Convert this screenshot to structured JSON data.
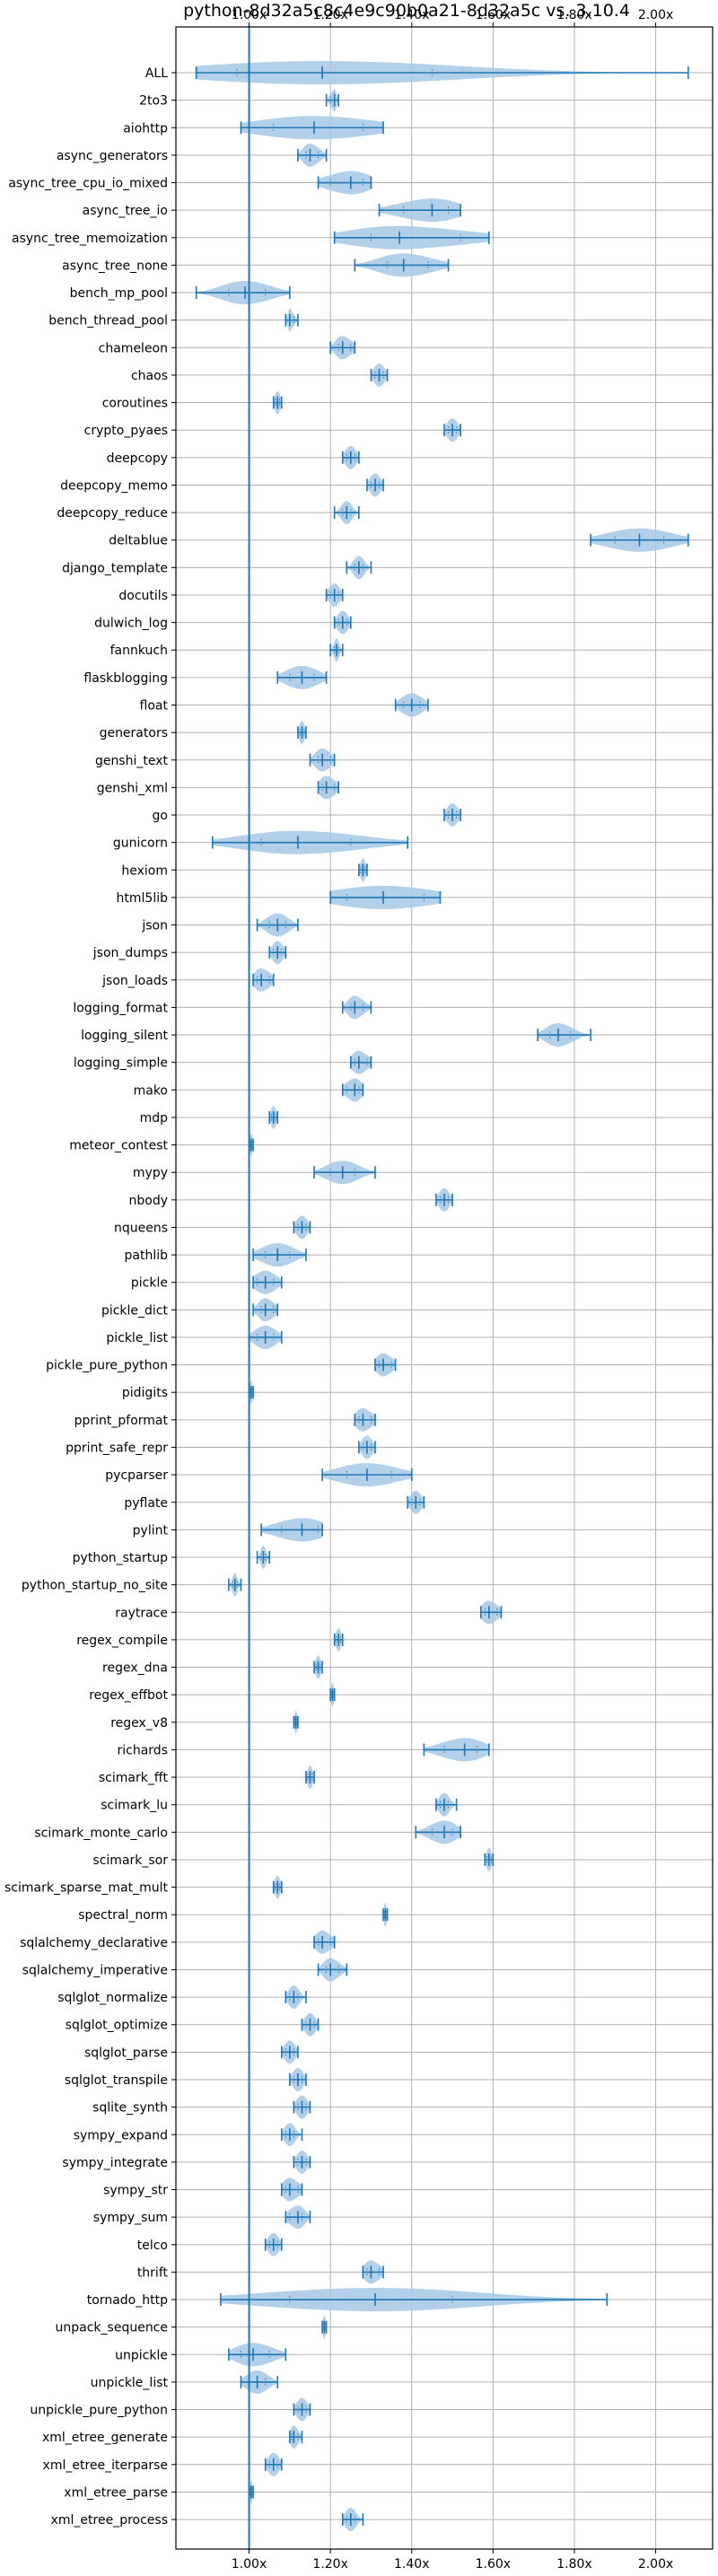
{
  "chart_data": {
    "type": "violin",
    "orientation": "horizontal",
    "title": "python-8d32a5c8c4e9c90b0a21-8d32a5c vs. 3.10.4",
    "xlabel": "",
    "ylabel": "",
    "xlim": [
      0.82,
      2.14
    ],
    "xticks": [
      1.0,
      1.2,
      1.4,
      1.6,
      1.8,
      2.0
    ],
    "xtick_labels": [
      "1.00x",
      "1.20x",
      "1.40x",
      "1.60x",
      "1.80x",
      "2.00x"
    ],
    "xticks_top_and_bottom": true,
    "reference_line": 1.0,
    "grid": true,
    "color": "#1f77b4",
    "fill_color": "#a6c8e6",
    "categories": [
      {
        "name": "ALL",
        "min": 0.87,
        "q1": 0.97,
        "median": 1.18,
        "q3": 1.45,
        "max": 2.08
      },
      {
        "name": "2to3",
        "min": 1.19,
        "q1": 1.2,
        "median": 1.21,
        "q3": 1.21,
        "max": 1.22
      },
      {
        "name": "aiohttp",
        "min": 0.98,
        "q1": 1.06,
        "median": 1.16,
        "q3": 1.28,
        "max": 1.33
      },
      {
        "name": "async_generators",
        "min": 1.12,
        "q1": 1.14,
        "median": 1.15,
        "q3": 1.17,
        "max": 1.19
      },
      {
        "name": "async_tree_cpu_io_mixed",
        "min": 1.17,
        "q1": 1.2,
        "median": 1.25,
        "q3": 1.28,
        "max": 1.3
      },
      {
        "name": "async_tree_io",
        "min": 1.32,
        "q1": 1.38,
        "median": 1.45,
        "q3": 1.49,
        "max": 1.52
      },
      {
        "name": "async_tree_memoization",
        "min": 1.21,
        "q1": 1.3,
        "median": 1.37,
        "q3": 1.52,
        "max": 1.59
      },
      {
        "name": "async_tree_none",
        "min": 1.26,
        "q1": 1.34,
        "median": 1.38,
        "q3": 1.44,
        "max": 1.49
      },
      {
        "name": "bench_mp_pool",
        "min": 0.87,
        "q1": 0.95,
        "median": 0.99,
        "q3": 1.04,
        "max": 1.1
      },
      {
        "name": "bench_thread_pool",
        "min": 1.09,
        "q1": 1.1,
        "median": 1.1,
        "q3": 1.11,
        "max": 1.12
      },
      {
        "name": "chameleon",
        "min": 1.2,
        "q1": 1.22,
        "median": 1.23,
        "q3": 1.25,
        "max": 1.26
      },
      {
        "name": "chaos",
        "min": 1.3,
        "q1": 1.31,
        "median": 1.32,
        "q3": 1.33,
        "max": 1.34
      },
      {
        "name": "coroutines",
        "min": 1.06,
        "q1": 1.065,
        "median": 1.07,
        "q3": 1.075,
        "max": 1.08
      },
      {
        "name": "crypto_pyaes",
        "min": 1.48,
        "q1": 1.49,
        "median": 1.5,
        "q3": 1.51,
        "max": 1.52
      },
      {
        "name": "deepcopy",
        "min": 1.23,
        "q1": 1.24,
        "median": 1.25,
        "q3": 1.26,
        "max": 1.27
      },
      {
        "name": "deepcopy_memo",
        "min": 1.29,
        "q1": 1.3,
        "median": 1.31,
        "q3": 1.32,
        "max": 1.33
      },
      {
        "name": "deepcopy_reduce",
        "min": 1.21,
        "q1": 1.23,
        "median": 1.24,
        "q3": 1.25,
        "max": 1.27
      },
      {
        "name": "deltablue",
        "min": 1.84,
        "q1": 1.9,
        "median": 1.96,
        "q3": 2.02,
        "max": 2.08
      },
      {
        "name": "django_template",
        "min": 1.24,
        "q1": 1.26,
        "median": 1.27,
        "q3": 1.28,
        "max": 1.3
      },
      {
        "name": "docutils",
        "min": 1.19,
        "q1": 1.2,
        "median": 1.21,
        "q3": 1.22,
        "max": 1.23
      },
      {
        "name": "dulwich_log",
        "min": 1.21,
        "q1": 1.22,
        "median": 1.23,
        "q3": 1.24,
        "max": 1.25
      },
      {
        "name": "fannkuch",
        "min": 1.2,
        "q1": 1.21,
        "median": 1.215,
        "q3": 1.22,
        "max": 1.23
      },
      {
        "name": "flaskblogging",
        "min": 1.07,
        "q1": 1.1,
        "median": 1.13,
        "q3": 1.16,
        "max": 1.19
      },
      {
        "name": "float",
        "min": 1.36,
        "q1": 1.38,
        "median": 1.4,
        "q3": 1.42,
        "max": 1.44
      },
      {
        "name": "generators",
        "min": 1.12,
        "q1": 1.125,
        "median": 1.13,
        "q3": 1.135,
        "max": 1.14
      },
      {
        "name": "genshi_text",
        "min": 1.15,
        "q1": 1.17,
        "median": 1.18,
        "q3": 1.2,
        "max": 1.21
      },
      {
        "name": "genshi_xml",
        "min": 1.17,
        "q1": 1.18,
        "median": 1.19,
        "q3": 1.21,
        "max": 1.22
      },
      {
        "name": "go",
        "min": 1.48,
        "q1": 1.49,
        "median": 1.5,
        "q3": 1.51,
        "max": 1.52
      },
      {
        "name": "gunicorn",
        "min": 0.91,
        "q1": 1.03,
        "median": 1.12,
        "q3": 1.25,
        "max": 1.39
      },
      {
        "name": "hexiom",
        "min": 1.27,
        "q1": 1.275,
        "median": 1.28,
        "q3": 1.285,
        "max": 1.29
      },
      {
        "name": "html5lib",
        "min": 1.2,
        "q1": 1.24,
        "median": 1.33,
        "q3": 1.43,
        "max": 1.47
      },
      {
        "name": "json",
        "min": 1.02,
        "q1": 1.05,
        "median": 1.07,
        "q3": 1.09,
        "max": 1.12
      },
      {
        "name": "json_dumps",
        "min": 1.05,
        "q1": 1.06,
        "median": 1.07,
        "q3": 1.08,
        "max": 1.09
      },
      {
        "name": "json_loads",
        "min": 1.01,
        "q1": 1.02,
        "median": 1.03,
        "q3": 1.05,
        "max": 1.06
      },
      {
        "name": "logging_format",
        "min": 1.23,
        "q1": 1.25,
        "median": 1.26,
        "q3": 1.28,
        "max": 1.3
      },
      {
        "name": "logging_silent",
        "min": 1.71,
        "q1": 1.74,
        "median": 1.76,
        "q3": 1.79,
        "max": 1.84
      },
      {
        "name": "logging_simple",
        "min": 1.25,
        "q1": 1.26,
        "median": 1.27,
        "q3": 1.29,
        "max": 1.3
      },
      {
        "name": "mako",
        "min": 1.23,
        "q1": 1.24,
        "median": 1.26,
        "q3": 1.27,
        "max": 1.28
      },
      {
        "name": "mdp",
        "min": 1.05,
        "q1": 1.055,
        "median": 1.06,
        "q3": 1.065,
        "max": 1.07
      },
      {
        "name": "meteor_contest",
        "min": 1.0,
        "q1": 1.003,
        "median": 1.005,
        "q3": 1.008,
        "max": 1.01
      },
      {
        "name": "mypy",
        "min": 1.16,
        "q1": 1.2,
        "median": 1.23,
        "q3": 1.26,
        "max": 1.31
      },
      {
        "name": "nbody",
        "min": 1.46,
        "q1": 1.47,
        "median": 1.48,
        "q3": 1.49,
        "max": 1.5
      },
      {
        "name": "nqueens",
        "min": 1.11,
        "q1": 1.12,
        "median": 1.13,
        "q3": 1.14,
        "max": 1.15
      },
      {
        "name": "pathlib",
        "min": 1.01,
        "q1": 1.04,
        "median": 1.07,
        "q3": 1.1,
        "max": 1.14
      },
      {
        "name": "pickle",
        "min": 1.01,
        "q1": 1.02,
        "median": 1.04,
        "q3": 1.06,
        "max": 1.08
      },
      {
        "name": "pickle_dict",
        "min": 1.01,
        "q1": 1.03,
        "median": 1.04,
        "q3": 1.06,
        "max": 1.07
      },
      {
        "name": "pickle_list",
        "min": 1.0,
        "q1": 1.02,
        "median": 1.04,
        "q3": 1.06,
        "max": 1.08
      },
      {
        "name": "pickle_pure_python",
        "min": 1.31,
        "q1": 1.32,
        "median": 1.33,
        "q3": 1.35,
        "max": 1.36
      },
      {
        "name": "pidigits",
        "min": 1.0,
        "q1": 1.002,
        "median": 1.005,
        "q3": 1.008,
        "max": 1.01
      },
      {
        "name": "pprint_pformat",
        "min": 1.26,
        "q1": 1.27,
        "median": 1.28,
        "q3": 1.3,
        "max": 1.31
      },
      {
        "name": "pprint_safe_repr",
        "min": 1.27,
        "q1": 1.28,
        "median": 1.29,
        "q3": 1.3,
        "max": 1.31
      },
      {
        "name": "pycparser",
        "min": 1.18,
        "q1": 1.24,
        "median": 1.29,
        "q3": 1.35,
        "max": 1.4
      },
      {
        "name": "pyflate",
        "min": 1.39,
        "q1": 1.4,
        "median": 1.41,
        "q3": 1.42,
        "max": 1.43
      },
      {
        "name": "pylint",
        "min": 1.03,
        "q1": 1.08,
        "median": 1.13,
        "q3": 1.17,
        "max": 1.18
      },
      {
        "name": "python_startup",
        "min": 1.02,
        "q1": 1.03,
        "median": 1.035,
        "q3": 1.04,
        "max": 1.05
      },
      {
        "name": "python_startup_no_site",
        "min": 0.95,
        "q1": 0.96,
        "median": 0.965,
        "q3": 0.97,
        "max": 0.98
      },
      {
        "name": "raytrace",
        "min": 1.57,
        "q1": 1.58,
        "median": 1.59,
        "q3": 1.61,
        "max": 1.62
      },
      {
        "name": "regex_compile",
        "min": 1.21,
        "q1": 1.215,
        "median": 1.22,
        "q3": 1.225,
        "max": 1.23
      },
      {
        "name": "regex_dna",
        "min": 1.16,
        "q1": 1.165,
        "median": 1.17,
        "q3": 1.175,
        "max": 1.18
      },
      {
        "name": "regex_effbot",
        "min": 1.2,
        "q1": 1.202,
        "median": 1.205,
        "q3": 1.208,
        "max": 1.21
      },
      {
        "name": "regex_v8",
        "min": 1.11,
        "q1": 1.113,
        "median": 1.115,
        "q3": 1.118,
        "max": 1.12
      },
      {
        "name": "richards",
        "min": 1.43,
        "q1": 1.48,
        "median": 1.53,
        "q3": 1.56,
        "max": 1.59
      },
      {
        "name": "scimark_fft",
        "min": 1.14,
        "q1": 1.145,
        "median": 1.15,
        "q3": 1.155,
        "max": 1.16
      },
      {
        "name": "scimark_lu",
        "min": 1.46,
        "q1": 1.47,
        "median": 1.48,
        "q3": 1.49,
        "max": 1.51
      },
      {
        "name": "scimark_monte_carlo",
        "min": 1.41,
        "q1": 1.45,
        "median": 1.48,
        "q3": 1.5,
        "max": 1.52
      },
      {
        "name": "scimark_sor",
        "min": 1.58,
        "q1": 1.585,
        "median": 1.59,
        "q3": 1.595,
        "max": 1.6
      },
      {
        "name": "scimark_sparse_mat_mult",
        "min": 1.06,
        "q1": 1.065,
        "median": 1.07,
        "q3": 1.075,
        "max": 1.08
      },
      {
        "name": "spectral_norm",
        "min": 1.33,
        "q1": 1.332,
        "median": 1.335,
        "q3": 1.338,
        "max": 1.34
      },
      {
        "name": "sqlalchemy_declarative",
        "min": 1.16,
        "q1": 1.17,
        "median": 1.18,
        "q3": 1.2,
        "max": 1.21
      },
      {
        "name": "sqlalchemy_imperative",
        "min": 1.17,
        "q1": 1.19,
        "median": 1.2,
        "q3": 1.22,
        "max": 1.24
      },
      {
        "name": "sqlglot_normalize",
        "min": 1.09,
        "q1": 1.1,
        "median": 1.11,
        "q3": 1.12,
        "max": 1.14
      },
      {
        "name": "sqlglot_optimize",
        "min": 1.13,
        "q1": 1.14,
        "median": 1.15,
        "q3": 1.16,
        "max": 1.17
      },
      {
        "name": "sqlglot_parse",
        "min": 1.08,
        "q1": 1.09,
        "median": 1.1,
        "q3": 1.11,
        "max": 1.12
      },
      {
        "name": "sqlglot_transpile",
        "min": 1.1,
        "q1": 1.11,
        "median": 1.12,
        "q3": 1.13,
        "max": 1.14
      },
      {
        "name": "sqlite_synth",
        "min": 1.11,
        "q1": 1.12,
        "median": 1.13,
        "q3": 1.14,
        "max": 1.15
      },
      {
        "name": "sympy_expand",
        "min": 1.08,
        "q1": 1.09,
        "median": 1.1,
        "q3": 1.11,
        "max": 1.13
      },
      {
        "name": "sympy_integrate",
        "min": 1.11,
        "q1": 1.12,
        "median": 1.13,
        "q3": 1.14,
        "max": 1.15
      },
      {
        "name": "sympy_str",
        "min": 1.08,
        "q1": 1.09,
        "median": 1.1,
        "q3": 1.12,
        "max": 1.13
      },
      {
        "name": "sympy_sum",
        "min": 1.09,
        "q1": 1.1,
        "median": 1.12,
        "q3": 1.13,
        "max": 1.15
      },
      {
        "name": "telco",
        "min": 1.04,
        "q1": 1.05,
        "median": 1.06,
        "q3": 1.07,
        "max": 1.08
      },
      {
        "name": "thrift",
        "min": 1.28,
        "q1": 1.29,
        "median": 1.3,
        "q3": 1.32,
        "max": 1.33
      },
      {
        "name": "tornado_http",
        "min": 0.93,
        "q1": 1.1,
        "median": 1.31,
        "q3": 1.5,
        "max": 1.88
      },
      {
        "name": "unpack_sequence",
        "min": 1.18,
        "q1": 1.182,
        "median": 1.185,
        "q3": 1.188,
        "max": 1.19
      },
      {
        "name": "unpickle",
        "min": 0.95,
        "q1": 0.98,
        "median": 1.01,
        "q3": 1.05,
        "max": 1.09
      },
      {
        "name": "unpickle_list",
        "min": 0.98,
        "q1": 1.0,
        "median": 1.02,
        "q3": 1.04,
        "max": 1.07
      },
      {
        "name": "unpickle_pure_python",
        "min": 1.11,
        "q1": 1.12,
        "median": 1.13,
        "q3": 1.14,
        "max": 1.15
      },
      {
        "name": "xml_etree_generate",
        "min": 1.1,
        "q1": 1.105,
        "median": 1.11,
        "q3": 1.12,
        "max": 1.13
      },
      {
        "name": "xml_etree_iterparse",
        "min": 1.04,
        "q1": 1.05,
        "median": 1.06,
        "q3": 1.07,
        "max": 1.08
      },
      {
        "name": "xml_etree_parse",
        "min": 1.0,
        "q1": 1.003,
        "median": 1.005,
        "q3": 1.008,
        "max": 1.01
      },
      {
        "name": "xml_etree_process",
        "min": 1.23,
        "q1": 1.24,
        "median": 1.25,
        "q3": 1.26,
        "max": 1.28
      }
    ]
  }
}
